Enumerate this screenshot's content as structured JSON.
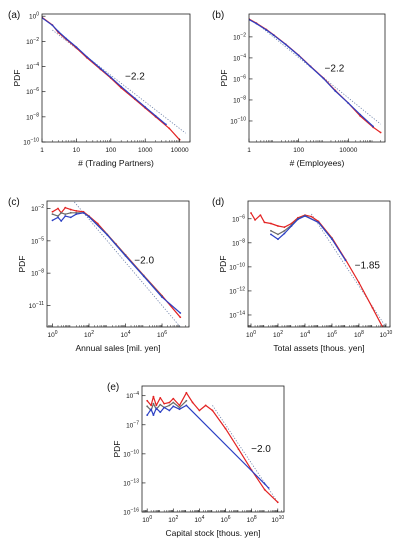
{
  "colors": {
    "red": "#e32222",
    "blue": "#2b3fc4",
    "gray": "#6b6b6b",
    "reference": "#6b7fa8"
  },
  "chart_data": [
    {
      "id": "a",
      "panel_label": "(a)",
      "type": "line",
      "scale": "log-log",
      "xlabel": "# (Trading Partners)",
      "ylabel": "PDF",
      "xlim": [
        1,
        20000
      ],
      "ylim": [
        1e-10,
        1.5
      ],
      "xticks": [
        1,
        10,
        100,
        1000,
        10000
      ],
      "xtick_labels": [
        "1",
        "10",
        "100",
        "1000",
        "10000"
      ],
      "yticks": [
        1,
        0.01,
        0.0001,
        1e-06,
        1e-08,
        1e-10
      ],
      "ytick_labels": [
        "10^0",
        "10^-2",
        "10^-4",
        "10^-6",
        "10^-8",
        "10^-10"
      ],
      "reference_line": {
        "slope": -2.2,
        "label": "−2.2",
        "x": [
          2,
          15000
        ],
        "y": [
          0.08,
          5e-10
        ]
      },
      "series": [
        {
          "color": "red",
          "x": [
            1,
            2,
            3,
            5,
            10,
            20,
            50,
            100,
            200,
            500,
            1000,
            2000,
            5000,
            10000
          ],
          "y": [
            0.8,
            0.2,
            0.05,
            0.015,
            0.003,
            0.0005,
            6e-05,
            1.2e-05,
            2e-06,
            2.5e-07,
            5e-08,
            1e-08,
            1.2e-09,
            1.5e-10
          ]
        },
        {
          "color": "blue",
          "x": [
            1,
            2,
            3,
            5,
            10,
            20,
            50,
            100,
            200,
            500,
            1000,
            2000,
            4000
          ],
          "y": [
            0.75,
            0.19,
            0.06,
            0.017,
            0.0035,
            0.0006,
            7e-05,
            1.4e-05,
            2.5e-06,
            3e-07,
            6e-08,
            1.2e-08,
            2.5e-09
          ]
        }
      ]
    },
    {
      "id": "b",
      "panel_label": "(b)",
      "type": "line",
      "scale": "log-log",
      "xlabel": "# (Employees)",
      "ylabel": "PDF",
      "xlim": [
        1,
        300000
      ],
      "ylim": [
        1e-12,
        1.5
      ],
      "xticks": [
        1,
        100,
        10000
      ],
      "xtick_labels": [
        "1",
        "100",
        "10000"
      ],
      "yticks": [
        0.01,
        0.0001,
        1e-06,
        1e-08,
        1e-10
      ],
      "ytick_labels": [
        "10^-2",
        "10^-4",
        "10^-6",
        "10^-8",
        "10^-10"
      ],
      "reference_line": {
        "slope": -2.2,
        "label": "−2.2",
        "x": [
          2,
          200000
        ],
        "y": [
          0.2,
          5e-11
        ]
      },
      "series": [
        {
          "color": "red",
          "x": [
            1,
            2,
            5,
            10,
            30,
            100,
            300,
            1000,
            3000,
            10000,
            30000,
            100000,
            200000
          ],
          "y": [
            0.5,
            0.2,
            0.05,
            0.015,
            0.002,
            0.00018,
            1.6e-05,
            1.2e-06,
            8e-08,
            5e-09,
            3e-10,
            2.5e-11,
            8e-12
          ]
        },
        {
          "color": "blue",
          "x": [
            1,
            2,
            5,
            10,
            30,
            100,
            300,
            1000,
            3000,
            10000,
            30000,
            100000
          ],
          "y": [
            0.45,
            0.18,
            0.045,
            0.014,
            0.0019,
            0.00017,
            1.5e-05,
            1.1e-06,
            7e-08,
            5e-09,
            4e-10,
            3e-11
          ]
        }
      ]
    },
    {
      "id": "c",
      "panel_label": "(c)",
      "type": "line",
      "scale": "log-log",
      "xlabel": "Annual sales [mil. yen]",
      "ylabel": "PDF",
      "xlim": [
        0.5,
        30000000.0
      ],
      "ylim": [
        1e-13,
        0.05
      ],
      "xticks": [
        1,
        100,
        10000,
        1000000
      ],
      "xtick_labels": [
        "10^0",
        "10^2",
        "10^4",
        "10^6"
      ],
      "yticks": [
        0.01,
        1e-05,
        1e-08,
        1e-11
      ],
      "ytick_labels": [
        "10^-2",
        "10^-5",
        "10^-8",
        "10^-11"
      ],
      "reference_line": {
        "slope": -2.0,
        "label": "−2.0",
        "x": [
          10,
          20000000.0
        ],
        "y": [
          0.1,
          2.5e-14
        ]
      },
      "series": [
        {
          "color": "red",
          "x": [
            1,
            2,
            3,
            5,
            10,
            20,
            50,
            100,
            300,
            1000,
            3000,
            10000,
            100000,
            1000000,
            10000000
          ],
          "y": [
            0.005,
            0.01,
            0.004,
            0.012,
            0.008,
            0.006,
            0.005,
            0.002,
            0.0004,
            4e-05,
            5e-06,
            5e-07,
            6e-09,
            8e-11,
            8e-13
          ]
        },
        {
          "color": "gray",
          "x": [
            1,
            2,
            3,
            5,
            10,
            20,
            50,
            100,
            1000,
            10000,
            100000,
            1000000
          ],
          "y": [
            0.003,
            0.002,
            0.004,
            0.003,
            0.004,
            0.004,
            0.004,
            0.0018,
            3.8e-05,
            4.5e-07,
            5.5e-09,
            7e-11
          ]
        },
        {
          "color": "blue",
          "x": [
            1,
            2,
            3,
            5,
            10,
            20,
            50,
            100,
            1000,
            10000,
            100000,
            1000000,
            10000000
          ],
          "y": [
            0.0008,
            0.0015,
            0.0007,
            0.002,
            0.0015,
            0.003,
            0.004,
            0.0017,
            3.5e-05,
            4e-07,
            5e-09,
            6e-11,
            2e-12
          ]
        }
      ]
    },
    {
      "id": "d",
      "panel_label": "(d)",
      "type": "line",
      "scale": "log-log",
      "xlabel": "Total assets [thous. yen]",
      "ylabel": "PDF",
      "xlim": [
        0.6,
        20000000000.0
      ],
      "ylim": [
        1e-15,
        3e-05
      ],
      "xticks": [
        1,
        100,
        10000,
        1000000,
        100000000,
        10000000000
      ],
      "xtick_labels": [
        "10^0",
        "10^2",
        "10^4",
        "10^6",
        "10^8",
        "10^10"
      ],
      "yticks": [
        1e-06,
        1e-08,
        1e-10,
        1e-12,
        1e-14
      ],
      "ytick_labels": [
        "10^-6",
        "10^-8",
        "10^-10",
        "10^-12",
        "10^-14"
      ],
      "reference_line": {
        "slope": -1.85,
        "label": "−1.85",
        "x": [
          30000,
          10000000000.0
        ],
        "y": [
          2.5e-06,
          1e-15
        ]
      },
      "series": [
        {
          "color": "red",
          "x": [
            1,
            2,
            5,
            10,
            30,
            100,
            300,
            1000,
            3000,
            10000,
            30000,
            100000,
            1000000,
            10000000,
            100000000,
            1000000000,
            10000000000
          ],
          "y": [
            3e-06,
            8e-07,
            2e-06,
            5e-07,
            4e-07,
            2.5e-07,
            2e-07,
            4e-07,
            1.2e-06,
            2e-06,
            1.5e-06,
            6e-07,
            2.5e-08,
            4e-10,
            5e-12,
            4e-14,
            3e-16
          ]
        },
        {
          "color": "gray",
          "x": [
            30,
            100,
            300,
            1000,
            3000,
            10000,
            100000,
            1000000
          ],
          "y": [
            1e-07,
            5e-08,
            1e-07,
            3e-07,
            1e-06,
            1.8e-06,
            5e-07,
            2.2e-08
          ]
        },
        {
          "color": "blue",
          "x": [
            30,
            100,
            300,
            1000,
            3000,
            10000,
            100000,
            1000000,
            10000000
          ],
          "y": [
            5e-08,
            2e-08,
            6e-08,
            2.5e-07,
            9e-07,
            1.7e-06,
            5e-07,
            2e-08,
            3.5e-10
          ]
        }
      ]
    },
    {
      "id": "e",
      "panel_label": "(e)",
      "type": "line",
      "scale": "log-log",
      "xlabel": "Capital stock [thous. yen]",
      "ylabel": "PDF",
      "xlim": [
        0.4,
        30000000000.0
      ],
      "ylim": [
        1e-16,
        0.001
      ],
      "xticks": [
        1,
        100,
        10000,
        1000000,
        100000000,
        10000000000
      ],
      "xtick_labels": [
        "10^0",
        "10^2",
        "10^4",
        "10^6",
        "10^8",
        "10^10"
      ],
      "yticks": [
        0.0001,
        1e-07,
        1e-10,
        1e-13,
        1e-16
      ],
      "ytick_labels": [
        "10^-4",
        "10^-7",
        "10^-10",
        "10^-13",
        "10^-16"
      ],
      "reference_line": {
        "slope": -2.0,
        "label": "−2.0",
        "x": [
          100000,
          10000000000.0
        ],
        "y": [
          1e-05,
          1e-15
        ]
      },
      "series": [
        {
          "color": "red",
          "x": [
            1,
            2,
            3,
            5,
            10,
            20,
            50,
            100,
            300,
            1000,
            3000,
            10000,
            30000,
            100000,
            1000000,
            10000000,
            100000000,
            1000000000,
            10000000000
          ],
          "y": [
            3e-05,
            1e-05,
            8e-05,
            1e-05,
            6e-05,
            1.5e-05,
            2e-05,
            5e-05,
            1e-05,
            0.0002,
            2e-05,
            3e-06,
            1e-05,
            3e-06,
            4e-08,
            3e-10,
            2e-12,
            2e-14,
            1e-15
          ]
        },
        {
          "color": "gray",
          "x": [
            1,
            2,
            3,
            5,
            10,
            20,
            50,
            100,
            300,
            1000
          ],
          "y": [
            8e-06,
            3e-06,
            1.5e-05,
            4e-06,
            1.2e-05,
            6e-06,
            1e-05,
            2e-05,
            6e-06,
            3e-05
          ]
        },
        {
          "color": "blue",
          "x": [
            1,
            2,
            3,
            5,
            10,
            20,
            50,
            100,
            300,
            1000,
            1000000000,
            2000000000
          ],
          "y": [
            1e-06,
            4e-06,
            1e-06,
            5e-06,
            2e-06,
            6e-06,
            3e-06,
            8e-06,
            4e-06,
            1e-05,
            8e-14,
            3e-14
          ]
        }
      ]
    }
  ]
}
